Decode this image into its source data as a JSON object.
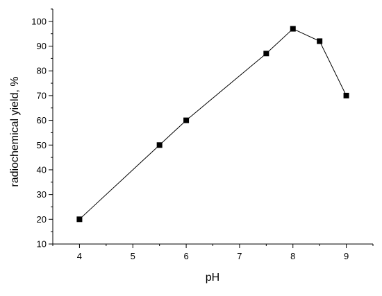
{
  "chart_data": {
    "type": "line",
    "xlabel": "pH",
    "ylabel": "radiochemical yield, %",
    "xlim": [
      3.5,
      9.5
    ],
    "ylim": [
      10,
      105
    ],
    "xticks": [
      4,
      5,
      6,
      7,
      8,
      9
    ],
    "yticks": [
      10,
      20,
      30,
      40,
      50,
      60,
      70,
      80,
      90,
      100
    ],
    "grid": false,
    "series": [
      {
        "x": [
          4,
          5.5,
          6,
          7.5,
          8,
          8.5,
          9
        ],
        "y": [
          20,
          50,
          60,
          87,
          97,
          92,
          70
        ],
        "marker": "square",
        "color": "#000000"
      }
    ]
  }
}
